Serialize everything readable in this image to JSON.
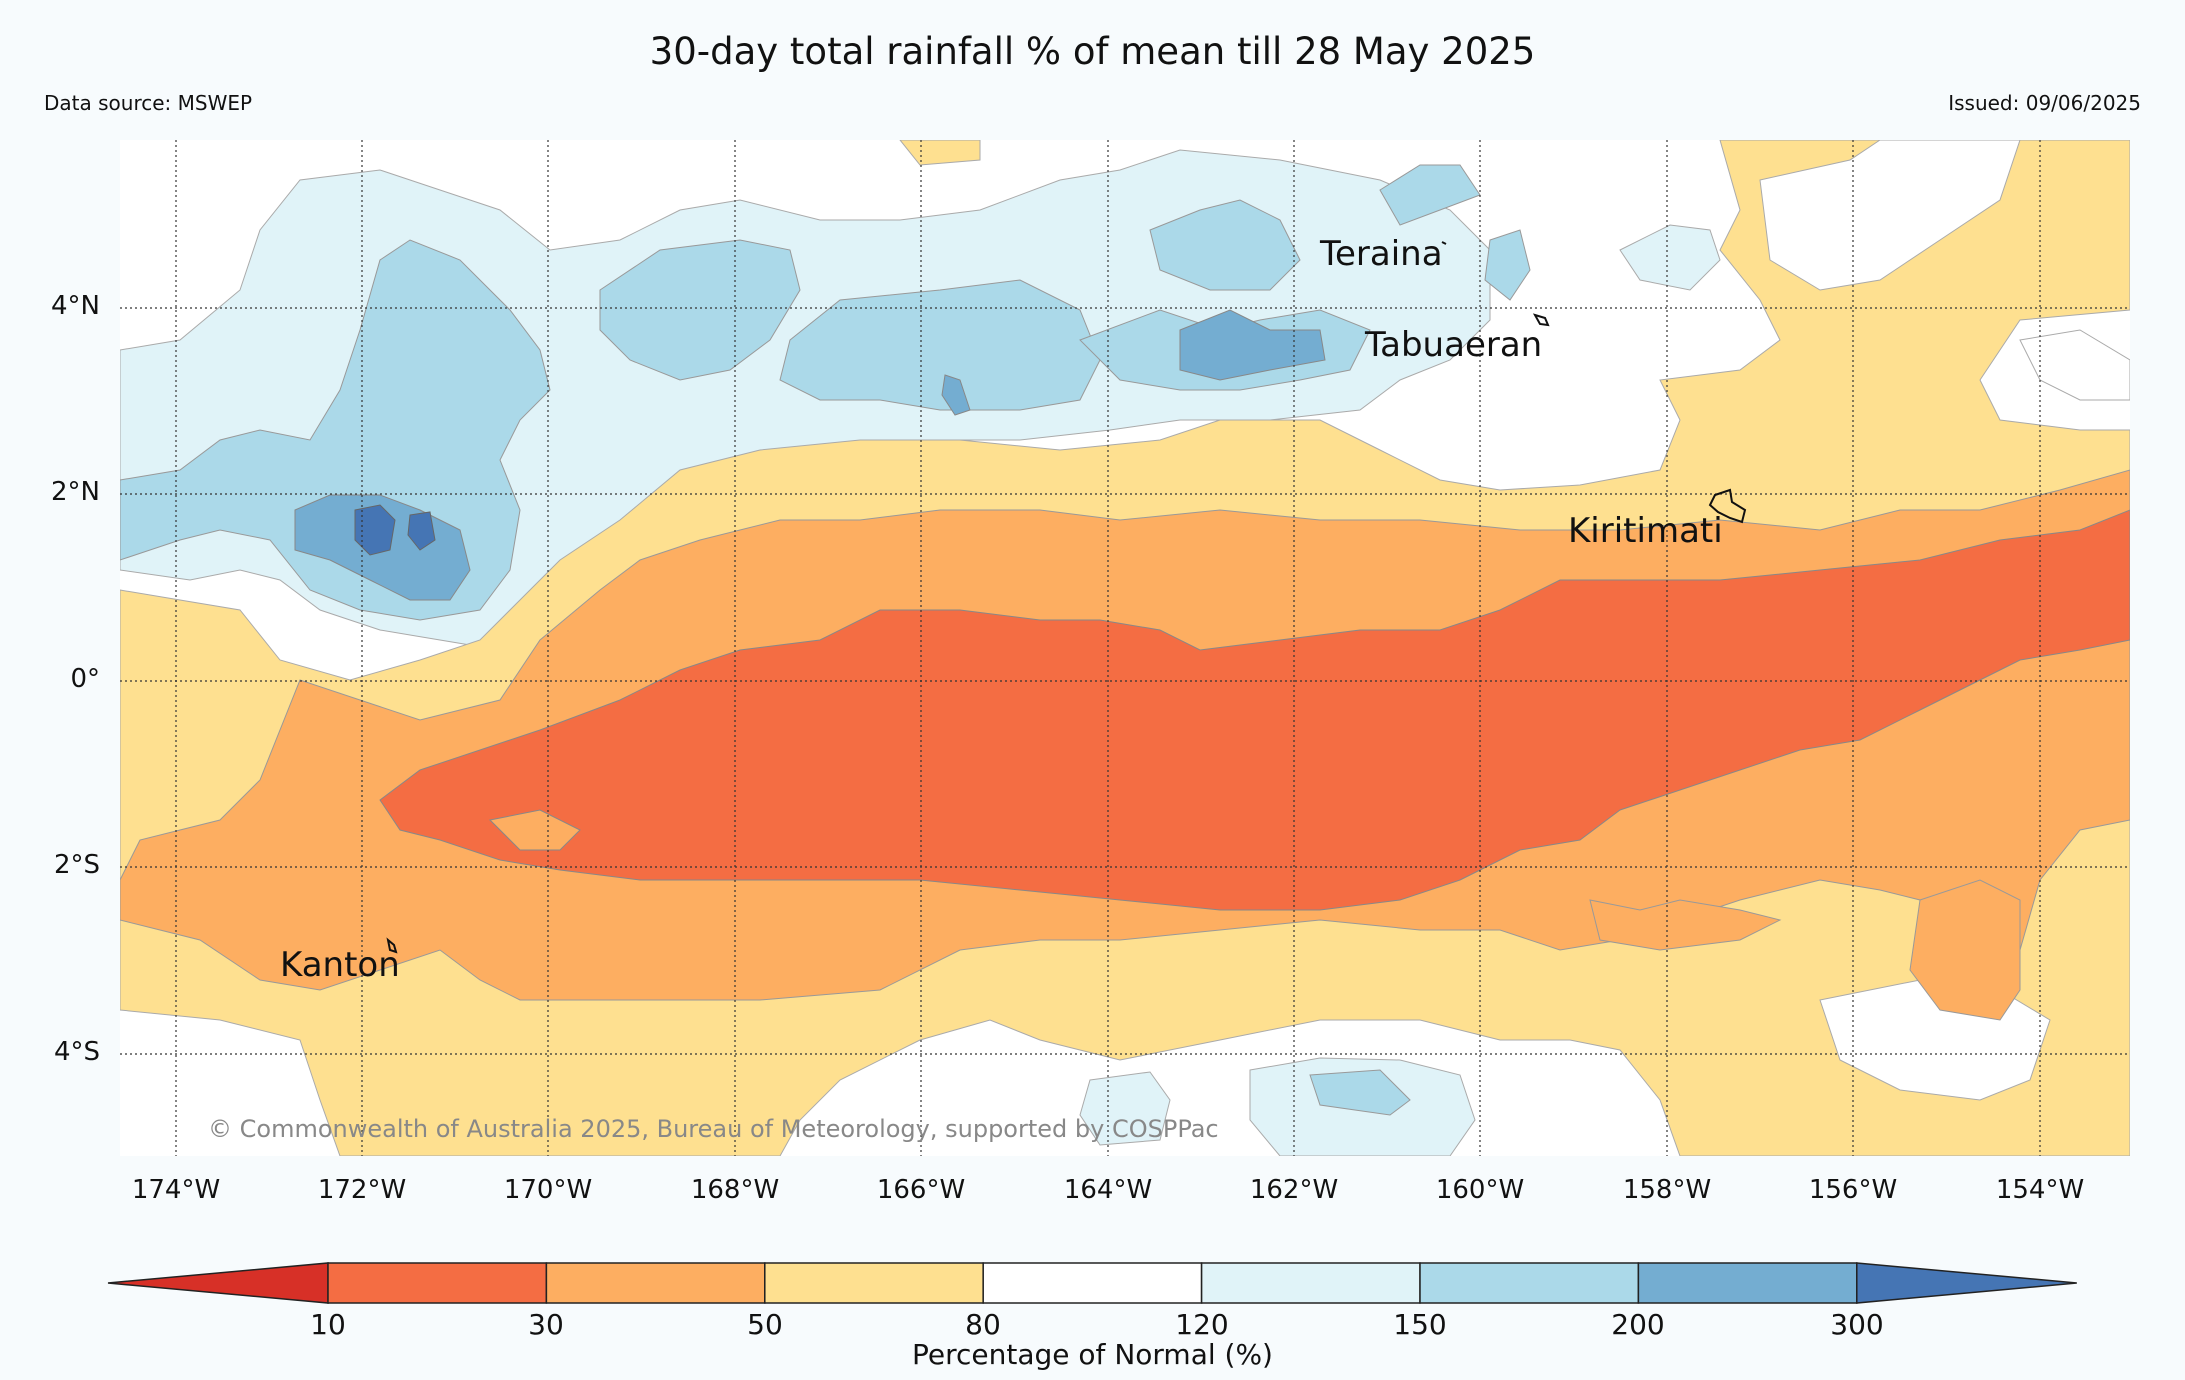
{
  "title": "30-day total rainfall % of mean till 28 May 2025",
  "data_source": "Data source: MSWEP",
  "issued": "Issued: 09/06/2025",
  "copyright": "© Commonwealth of Australia 2025, Bureau of Meteorology, supported by COSPPac",
  "lat_labels": [
    "4°N",
    "2°N",
    "0°",
    "2°S",
    "4°S"
  ],
  "lon_labels": [
    "174°W",
    "172°W",
    "170°W",
    "168°W",
    "166°W",
    "164°W",
    "162°W",
    "160°W",
    "158°W",
    "156°W",
    "154°W"
  ],
  "places": {
    "teraina": "Teraina",
    "tabuaeran": "Tabuaeran",
    "kiritimati": "Kiritimati",
    "kanton": "Kanton"
  },
  "legend": {
    "title": "Percentage of Normal (%)",
    "ticks": [
      "10",
      "30",
      "50",
      "80",
      "120",
      "150",
      "200",
      "300"
    ],
    "colors": [
      "#d73027",
      "#f46d43",
      "#fdae61",
      "#fee090",
      "#ffffff",
      "#e0f3f8",
      "#abd9e9",
      "#74add1",
      "#4575b4"
    ]
  }
}
